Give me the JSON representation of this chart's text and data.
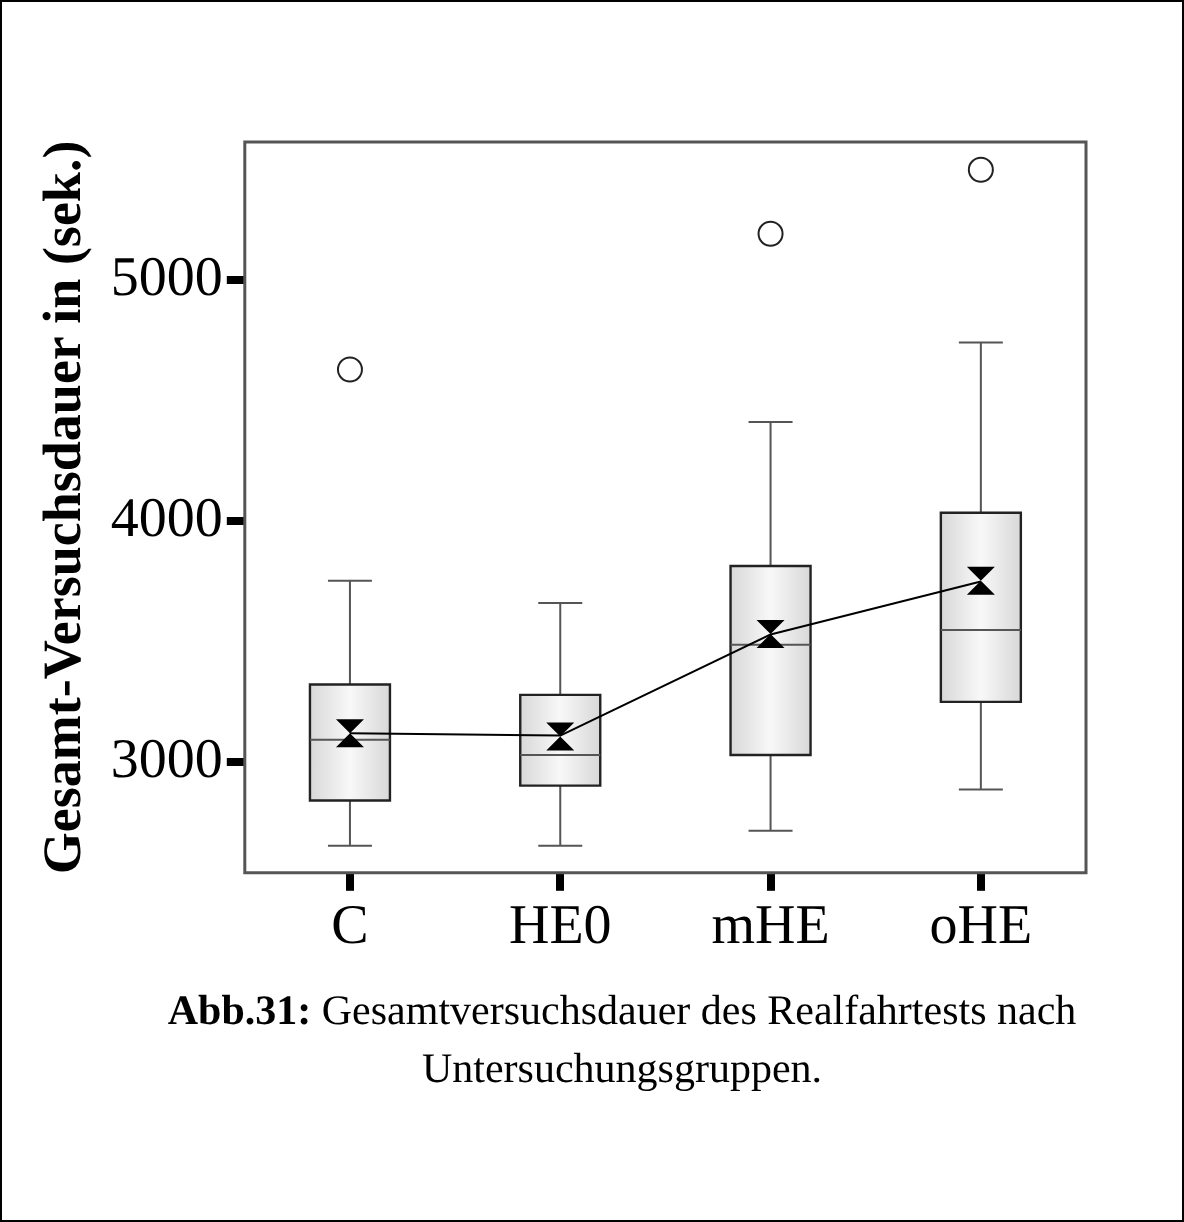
{
  "chart_data": {
    "type": "box",
    "ylabel": "Gesamt-Versuchsdauer in (sek.)",
    "categories": [
      "C",
      "HE0",
      "mHE",
      "oHE"
    ],
    "boxes": [
      {
        "low": 2652,
        "q1": 2840,
        "median": 3093,
        "q3": 3322,
        "high": 3753,
        "mean": 3120,
        "outliers": [
          4630
        ]
      },
      {
        "low": 2652,
        "q1": 2902,
        "median": 3029,
        "q3": 3279,
        "high": 3660,
        "mean": 3106
      },
      {
        "low": 2715,
        "q1": 3029,
        "median": 3487,
        "q3": 3814,
        "high": 4412,
        "mean": 3532,
        "outliers": [
          5194
        ]
      },
      {
        "low": 2886,
        "q1": 3250,
        "median": 3548,
        "q3": 4035,
        "high": 4742,
        "mean": 3753,
        "outliers": [
          5460
        ]
      }
    ],
    "series": [
      {
        "type": "line",
        "color": "#000000",
        "marker": "none",
        "values": [
          3120,
          3110,
          3530,
          3750
        ]
      }
    ],
    "ylim": [
      2540,
      5575
    ],
    "yticks": [
      3000,
      4000,
      5000
    ],
    "grid": false,
    "legend": false,
    "annotations": [
      "Abb.31: Gesamtversuchsdauer des Realfahrtests nach Untersuchungsgruppen."
    ]
  }
}
